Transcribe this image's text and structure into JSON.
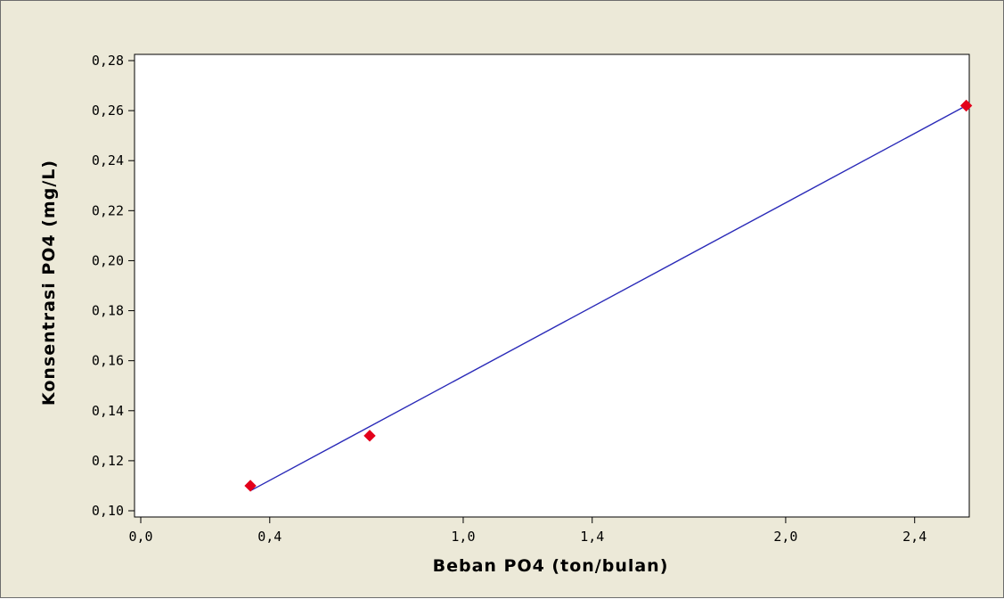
{
  "chart_data": {
    "type": "scatter",
    "title": "",
    "xlabel": "Beban PO4 (ton/bulan)",
    "ylabel": "Konsentrasi PO4  (mg/L)",
    "xlim": [
      0.0,
      2.55
    ],
    "ylim": [
      0.1,
      0.28
    ],
    "xticks": [
      0.0,
      0.4,
      1.0,
      1.4,
      2.0,
      2.4
    ],
    "xtick_labels": [
      "0,0",
      "0,4",
      "1,0",
      "1,4",
      "2,0",
      "2,4"
    ],
    "yticks": [
      0.1,
      0.12,
      0.14,
      0.16,
      0.18,
      0.2,
      0.22,
      0.24,
      0.26,
      0.28
    ],
    "ytick_labels": [
      "0,10",
      "0,12",
      "0,14",
      "0,16",
      "0,18",
      "0,20",
      "0,22",
      "0,24",
      "0,26",
      "0,28"
    ],
    "grid": false,
    "legend": "none",
    "series": [
      {
        "type": "scatter",
        "x": [
          0.34,
          0.71,
          2.56
        ],
        "y": [
          0.11,
          0.13,
          0.262
        ],
        "color": "#e3001b"
      },
      {
        "type": "line",
        "x": [
          0.34,
          2.56
        ],
        "y": [
          0.108,
          0.262
        ],
        "color": "#2a2ab8"
      }
    ]
  }
}
